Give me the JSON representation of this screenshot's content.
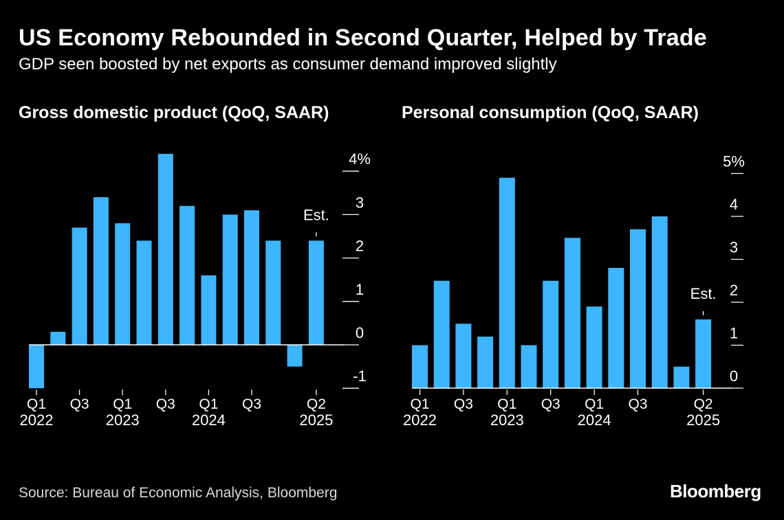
{
  "title": "US Economy Rebounded in Second Quarter, Helped by Trade",
  "subtitle": "GDP seen boosted by net exports as consumer demand improved slightly",
  "source": "Source: Bureau of Economic Analysis, Bloomberg",
  "logo": "Bloomberg",
  "colors": {
    "bar": "#3db5ff",
    "background": "#000000",
    "text": "#ffffff",
    "axis": "#ffffff"
  },
  "chart_data": [
    {
      "type": "bar",
      "title": "Gross domestic product (QoQ, SAAR)",
      "unit": "%",
      "categories": [
        "Q1 2022",
        "Q2 2022",
        "Q3 2022",
        "Q4 2022",
        "Q1 2023",
        "Q2 2023",
        "Q3 2023",
        "Q4 2023",
        "Q1 2024",
        "Q2 2024",
        "Q3 2024",
        "Q4 2024",
        "Q1 2025",
        "Q2 2025"
      ],
      "values": [
        -1.0,
        0.3,
        2.7,
        3.4,
        2.8,
        2.4,
        4.4,
        3.2,
        1.6,
        3.0,
        3.1,
        2.4,
        -0.5,
        2.4
      ],
      "ylim": [
        -1,
        4.4
      ],
      "yticks": [
        -1,
        0,
        1,
        2,
        3,
        4
      ],
      "ytick_labels": [
        "-1",
        "0",
        "1",
        "2",
        "3",
        "4%"
      ],
      "xtick_labels": [
        {
          "index": 0,
          "quarter": "Q1",
          "year": "2022"
        },
        {
          "index": 2,
          "quarter": "Q3",
          "year": ""
        },
        {
          "index": 4,
          "quarter": "Q1",
          "year": "2023"
        },
        {
          "index": 6,
          "quarter": "Q3",
          "year": ""
        },
        {
          "index": 8,
          "quarter": "Q1",
          "year": "2024"
        },
        {
          "index": 10,
          "quarter": "Q3",
          "year": ""
        },
        {
          "index": 13,
          "quarter": "Q2",
          "year": "2025"
        }
      ],
      "annotation": {
        "index": 13,
        "text": "Est."
      }
    },
    {
      "type": "bar",
      "title": "Personal consumption (QoQ, SAAR)",
      "unit": "%",
      "categories": [
        "Q1 2022",
        "Q2 2022",
        "Q3 2022",
        "Q4 2022",
        "Q1 2023",
        "Q2 2023",
        "Q3 2023",
        "Q4 2023",
        "Q1 2024",
        "Q2 2024",
        "Q3 2024",
        "Q4 2024",
        "Q1 2025",
        "Q2 2025"
      ],
      "values": [
        1.0,
        2.5,
        1.5,
        1.2,
        4.9,
        1.0,
        2.5,
        3.5,
        1.9,
        2.8,
        3.7,
        4.0,
        0.5,
        1.6
      ],
      "ylim": [
        0,
        5
      ],
      "yticks": [
        0,
        1,
        2,
        3,
        4,
        5
      ],
      "ytick_labels": [
        "0",
        "1",
        "2",
        "3",
        "4",
        "5%"
      ],
      "xtick_labels": [
        {
          "index": 0,
          "quarter": "Q1",
          "year": "2022"
        },
        {
          "index": 2,
          "quarter": "Q3",
          "year": ""
        },
        {
          "index": 4,
          "quarter": "Q1",
          "year": "2023"
        },
        {
          "index": 6,
          "quarter": "Q3",
          "year": ""
        },
        {
          "index": 8,
          "quarter": "Q1",
          "year": "2024"
        },
        {
          "index": 10,
          "quarter": "Q3",
          "year": ""
        },
        {
          "index": 13,
          "quarter": "Q2",
          "year": "2025"
        }
      ],
      "annotation": {
        "index": 13,
        "text": "Est."
      }
    }
  ]
}
